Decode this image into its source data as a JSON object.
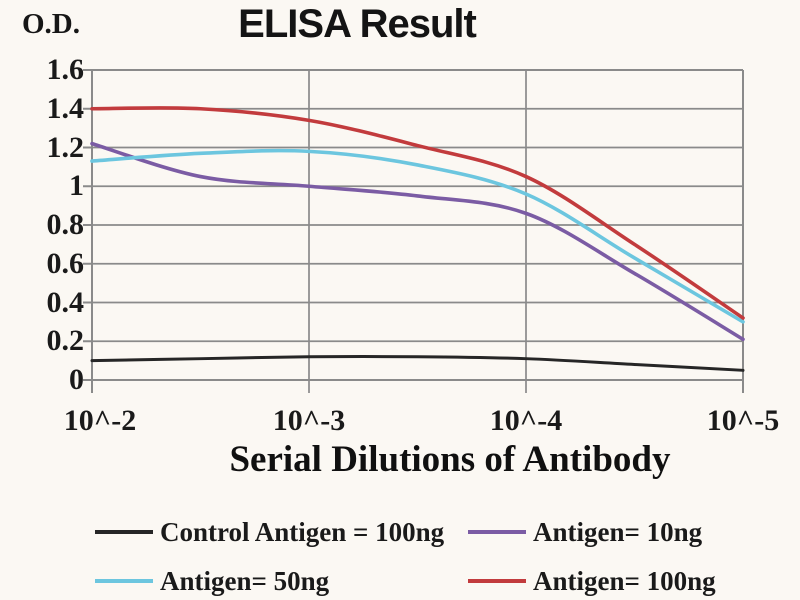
{
  "chart": {
    "title": "ELISA Result",
    "od_label": "O.D.",
    "xlabel": "Serial Dilutions of Antibody"
  },
  "chart_data": {
    "type": "line",
    "title": "ELISA Result",
    "ylabel": "O.D.",
    "xlabel": "Serial Dilutions of Antibody",
    "x_categories": [
      "10^-2",
      "10^-3",
      "10^-4",
      "10^-5"
    ],
    "ylim": [
      0,
      1.6
    ],
    "ytick_labels": [
      "1.6",
      "1.4",
      "1.2",
      "1",
      "0.8",
      "0.6",
      "0.4",
      "0.2",
      "0"
    ],
    "grid": true,
    "grid_color": "#8a8a8a",
    "legend_position": "bottom",
    "series": [
      {
        "name": "Control Antigen = 100ng",
        "legend_label": "Control Antigen = 100ng",
        "color": "#262626",
        "values": [
          0.1,
          0.12,
          0.11,
          0.05
        ],
        "curve_samples": [
          [
            0,
            0.1
          ],
          [
            0.5,
            0.11
          ],
          [
            1,
            0.12
          ],
          [
            1.5,
            0.12
          ],
          [
            2,
            0.11
          ],
          [
            2.5,
            0.08
          ],
          [
            3,
            0.05
          ]
        ]
      },
      {
        "name": "Antigen= 10ng",
        "legend_label": "Antigen= 10ng",
        "color": "#7B5CA4",
        "values": [
          1.22,
          1.0,
          0.86,
          0.21
        ],
        "curve_samples": [
          [
            0,
            1.22
          ],
          [
            0.5,
            1.05
          ],
          [
            1,
            1.0
          ],
          [
            1.5,
            0.95
          ],
          [
            2,
            0.86
          ],
          [
            2.5,
            0.55
          ],
          [
            3,
            0.21
          ]
        ]
      },
      {
        "name": "Antigen= 50ng",
        "legend_label": "Antigen= 50ng",
        "color": "#6CC6DF",
        "values": [
          1.13,
          1.18,
          0.96,
          0.3
        ],
        "curve_samples": [
          [
            0,
            1.13
          ],
          [
            0.5,
            1.17
          ],
          [
            1,
            1.18
          ],
          [
            1.5,
            1.11
          ],
          [
            2,
            0.96
          ],
          [
            2.5,
            0.63
          ],
          [
            3,
            0.3
          ]
        ]
      },
      {
        "name": "Antigen= 100ng",
        "legend_label": "Antigen= 100ng",
        "color": "#C23B3D",
        "values": [
          1.4,
          1.34,
          1.05,
          0.32
        ],
        "curve_samples": [
          [
            0,
            1.4
          ],
          [
            0.5,
            1.4
          ],
          [
            1,
            1.34
          ],
          [
            1.5,
            1.21
          ],
          [
            2,
            1.05
          ],
          [
            2.5,
            0.7
          ],
          [
            3,
            0.32
          ]
        ]
      }
    ]
  }
}
